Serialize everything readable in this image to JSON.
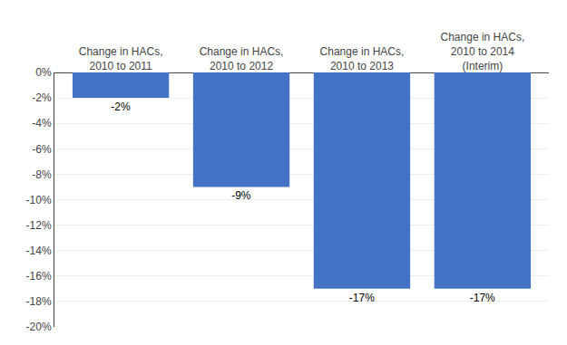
{
  "chart_data": {
    "type": "bar",
    "categories": [
      "Change in HACs,\n2010 to 2011",
      "Change in HACs,\n2010 to 2012",
      "Change in HACs,\n2010 to 2013",
      "Change in HACs,\n2010 to 2014\n(Interim)"
    ],
    "values": [
      -2,
      -9,
      -17,
      -17
    ],
    "value_labels": [
      "-2%",
      "-9%",
      "-17%",
      "-17%"
    ],
    "data_labels": true,
    "color": "#4472C4",
    "ylim": [
      -20,
      0
    ],
    "yticks": [
      {
        "value": 0,
        "label": "0%"
      },
      {
        "value": -2,
        "label": "-2%"
      },
      {
        "value": -4,
        "label": "-4%"
      },
      {
        "value": -6,
        "label": "-6%"
      },
      {
        "value": -8,
        "label": "-8%"
      },
      {
        "value": -10,
        "label": "-10%"
      },
      {
        "value": -12,
        "label": "-12%"
      },
      {
        "value": -14,
        "label": "-14%"
      },
      {
        "value": -16,
        "label": "-16%"
      },
      {
        "value": -18,
        "label": "-18%"
      },
      {
        "value": -20,
        "label": "-20%"
      }
    ],
    "grid": true
  }
}
